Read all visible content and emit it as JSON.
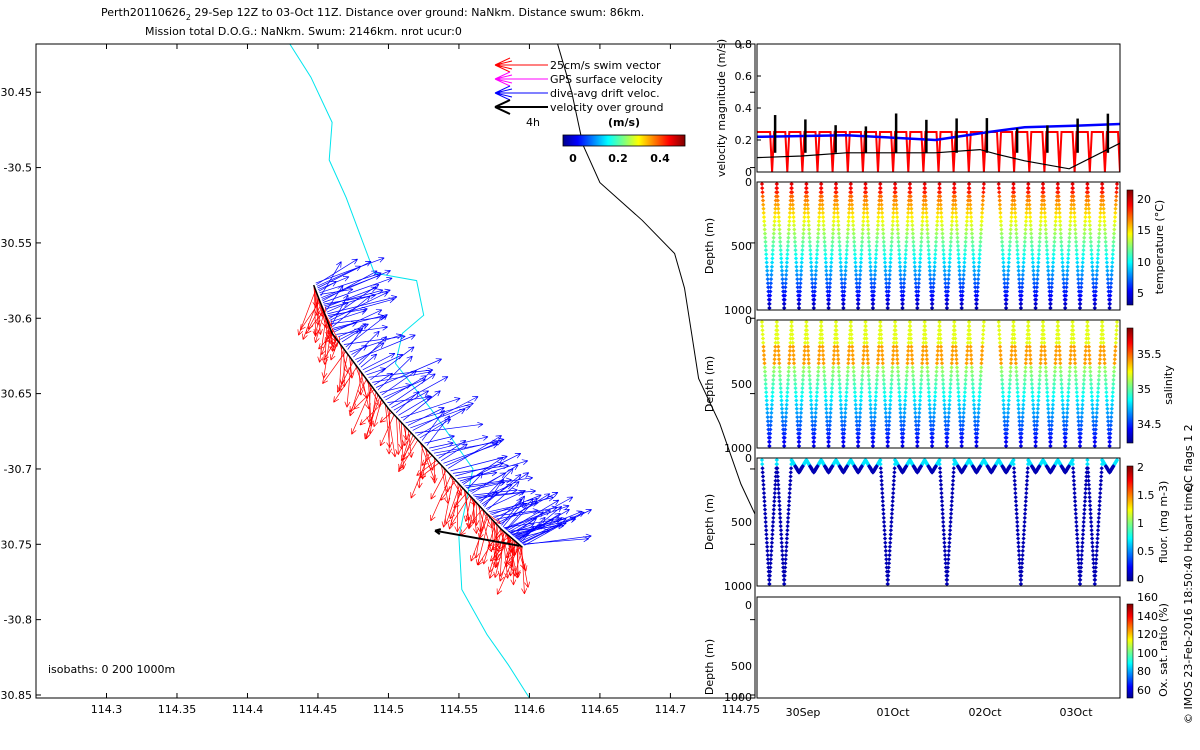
{
  "header": {
    "line1_prefix": "Perth20110626",
    "line1_sub": "2",
    "line1_rest": " 29-Sep 12Z to 03-Oct 11Z. Distance over ground: NaNkm. Distance swum: 86km.",
    "line2": "Mission total D.O.G.: NaNkm. Swum: 2146km. nrot ucur:0"
  },
  "colors": {
    "swim": "#ff0000",
    "gps": "#ff00ff",
    "drift": "#0000ff",
    "track": "#000000",
    "isobath": "#00e5ee",
    "frame": "#000000"
  },
  "chart_data": [
    {
      "type": "map-track",
      "xlim": [
        114.25,
        114.76
      ],
      "ylim": [
        -30.852,
        -30.418
      ],
      "xticks": [
        "114.3",
        "114.35",
        "114.4",
        "114.45",
        "114.5",
        "114.55",
        "114.6",
        "114.65",
        "114.7",
        "114.75"
      ],
      "yticks": [
        "-30.45",
        "-30.5",
        "-30.55",
        "-30.6",
        "-30.65",
        "-30.7",
        "-30.75",
        "-30.8",
        "-30.85"
      ],
      "track": [
        [
          114.447,
          -30.578
        ],
        [
          114.46,
          -30.61
        ],
        [
          114.5,
          -30.66
        ],
        [
          114.55,
          -30.71
        ],
        [
          114.58,
          -30.74
        ],
        [
          114.595,
          -30.752
        ]
      ],
      "isobath_0": [
        [
          114.43,
          -30.418
        ],
        [
          114.445,
          -30.44
        ],
        [
          114.46,
          -30.47
        ],
        [
          114.458,
          -30.495
        ],
        [
          114.47,
          -30.52
        ],
        [
          114.48,
          -30.545
        ],
        [
          114.49,
          -30.57
        ],
        [
          114.52,
          -30.575
        ],
        [
          114.525,
          -30.598
        ],
        [
          114.51,
          -30.61
        ],
        [
          114.505,
          -30.63
        ],
        [
          114.53,
          -30.66
        ],
        [
          114.56,
          -30.7
        ],
        [
          114.55,
          -30.745
        ],
        [
          114.552,
          -30.78
        ],
        [
          114.57,
          -30.81
        ],
        [
          114.585,
          -30.83
        ],
        [
          114.6,
          -30.852
        ]
      ],
      "isobath_1000": [
        [
          114.62,
          -30.418
        ],
        [
          114.63,
          -30.45
        ],
        [
          114.638,
          -30.485
        ],
        [
          114.65,
          -30.51
        ],
        [
          114.68,
          -30.535
        ],
        [
          114.703,
          -30.557
        ],
        [
          114.71,
          -30.58
        ],
        [
          114.715,
          -30.61
        ],
        [
          114.72,
          -30.64
        ],
        [
          114.735,
          -30.67
        ],
        [
          114.75,
          -30.71
        ],
        [
          114.76,
          -30.73
        ]
      ],
      "current_vector": {
        "x": 114.593,
        "y": -30.751,
        "dx": -0.06,
        "dy": 0.01
      },
      "legend": {
        "items": [
          "25cm/s swim vector",
          "GPS surface velocity",
          "dive-avg drift veloc.",
          "velocity over ground"
        ],
        "scale_label": "4h",
        "colorbar_title": "(m/s)",
        "colorbar_ticks": [
          "0",
          "0.2",
          "0.4"
        ]
      },
      "isobath_label": "isobaths: 0   200  1000m"
    },
    {
      "type": "line",
      "ylabel": "velocity magnitude (m/s)",
      "ylim": [
        0,
        0.8
      ],
      "yticks": [
        "0",
        "0.2",
        "0.4",
        "0.6",
        "0.8"
      ],
      "x_days_range": [
        0,
        4.07
      ],
      "dive_count": 24,
      "series": [
        {
          "name": "swim",
          "color": "#ff0000",
          "level": 0.25
        },
        {
          "name": "drift",
          "color": "#0000ff",
          "values": [
            [
              0,
              0.22
            ],
            [
              1,
              0.23
            ],
            [
              2,
              0.2
            ],
            [
              2.6,
              0.25
            ],
            [
              3,
              0.28
            ],
            [
              3.6,
              0.29
            ],
            [
              4.07,
              0.3
            ]
          ]
        },
        {
          "name": "over ground",
          "color": "#000000",
          "values": [
            [
              0,
              0.09
            ],
            [
              0.5,
              0.1
            ],
            [
              1,
              0.12
            ],
            [
              2,
              0.12
            ],
            [
              2.5,
              0.14
            ],
            [
              2.7,
              0.11
            ],
            [
              3,
              0.07
            ],
            [
              3.5,
              0.02
            ],
            [
              4.07,
              0.18
            ]
          ]
        }
      ]
    }
  ],
  "panels": {
    "temperature": {
      "ylabel": "Depth (m)",
      "cbar_label": "temperature (°C)",
      "cbar_ticks": [
        "5",
        "10",
        "15",
        "20"
      ],
      "yticks": [
        "0",
        "500",
        "1000"
      ]
    },
    "salinity": {
      "ylabel": "Depth (m)",
      "cbar_label": "salinity",
      "cbar_ticks": [
        "34.5",
        "35",
        "35.5"
      ],
      "yticks": [
        "0",
        "500",
        "1000"
      ]
    },
    "fluor": {
      "ylabel": "Depth (m)",
      "cbar_label": "fluor. (mg m-3)",
      "cbar_ticks": [
        "0",
        "0.5",
        "1",
        "1.5",
        "2"
      ],
      "yticks": [
        "0",
        "500",
        "1000"
      ]
    },
    "oxygen": {
      "ylabel": "Depth (m)",
      "cbar_label": "Ox. sat. ratio (%)",
      "cbar_ticks": [
        "60",
        "80",
        "100",
        "120",
        "140",
        "160"
      ],
      "yticks": [
        "0",
        "500",
        "1000"
      ]
    }
  },
  "xaxis_dates": [
    "30Sep",
    "01Oct",
    "02Oct",
    "03Oct"
  ],
  "qc_label": "QC flags 1  2",
  "imos_label": "© IMOS 23-Feb-2016 18:50:40 Hobart time."
}
